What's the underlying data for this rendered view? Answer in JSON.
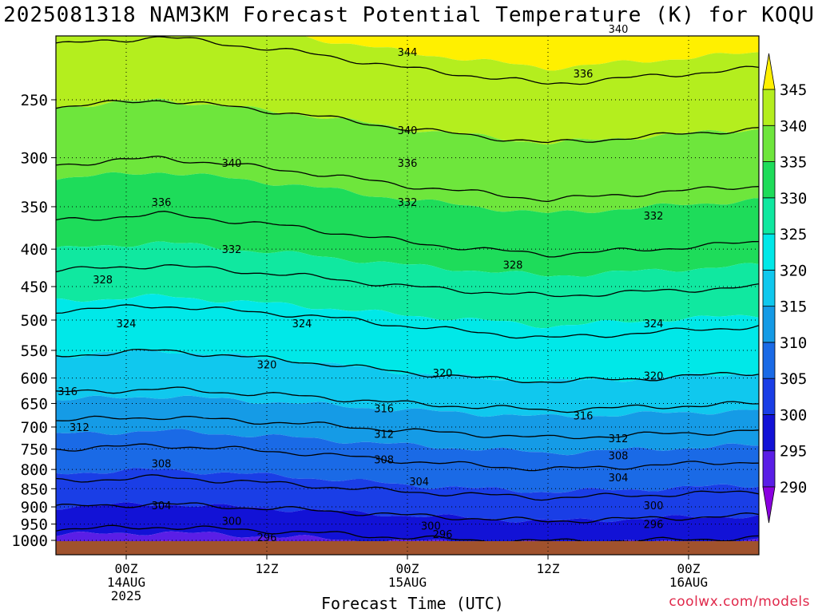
{
  "chart_data": {
    "type": "heatmap",
    "title": "2025081318 NAM3KM Forecast Potential Temperature (K) for KOQU",
    "xlabel": "Forecast Time (UTC)",
    "ylabel": "",
    "y_scale": "log-pressure",
    "y_ticks": [
      250,
      300,
      350,
      400,
      450,
      500,
      550,
      600,
      650,
      700,
      750,
      800,
      850,
      900,
      950,
      1000
    ],
    "x_ticks": [
      {
        "time": "2025-08-14T00Z",
        "label": [
          "00Z",
          "14AUG",
          "2025"
        ]
      },
      {
        "time": "2025-08-14T12Z",
        "label": [
          "12Z"
        ]
      },
      {
        "time": "2025-08-15T00Z",
        "label": [
          "00Z",
          "15AUG"
        ]
      },
      {
        "time": "2025-08-15T12Z",
        "label": [
          "12Z"
        ]
      },
      {
        "time": "2025-08-16T00Z",
        "label": [
          "00Z",
          "16AUG"
        ]
      }
    ],
    "x_range": [
      "2025-08-13T18Z",
      "2025-08-16T06Z"
    ],
    "y_range": [
      1010,
      200
    ],
    "colorbar": {
      "ticks": [
        290,
        295,
        300,
        305,
        310,
        315,
        320,
        325,
        330,
        335,
        340,
        345
      ],
      "levels": [
        {
          "min": 285,
          "max": 290,
          "color": "#8a00e0"
        },
        {
          "min": 290,
          "max": 295,
          "color": "#5a1ee6"
        },
        {
          "min": 295,
          "max": 300,
          "color": "#1212d6"
        },
        {
          "min": 300,
          "max": 305,
          "color": "#1a3ee6"
        },
        {
          "min": 305,
          "max": 310,
          "color": "#1a6ae6"
        },
        {
          "min": 310,
          "max": 315,
          "color": "#159be6"
        },
        {
          "min": 315,
          "max": 320,
          "color": "#10c8ee"
        },
        {
          "min": 320,
          "max": 325,
          "color": "#00e8e8"
        },
        {
          "min": 325,
          "max": 330,
          "color": "#10e8a0"
        },
        {
          "min": 330,
          "max": 335,
          "color": "#1edc5a"
        },
        {
          "min": 335,
          "max": 340,
          "color": "#6ee63c"
        },
        {
          "min": 340,
          "max": 345,
          "color": "#b4ee1e"
        },
        {
          "min": 345,
          "max": 350,
          "color": "#fff000"
        }
      ]
    },
    "profile": [
      {
        "p": 1010,
        "theta": 293
      },
      {
        "p": 1000,
        "theta": 295
      },
      {
        "p": 950,
        "theta": 298
      },
      {
        "p": 900,
        "theta": 301
      },
      {
        "p": 850,
        "theta": 304
      },
      {
        "p": 800,
        "theta": 306.5
      },
      {
        "p": 750,
        "theta": 309
      },
      {
        "p": 700,
        "theta": 312
      },
      {
        "p": 650,
        "theta": 315.5
      },
      {
        "p": 600,
        "theta": 319
      },
      {
        "p": 550,
        "theta": 321.5
      },
      {
        "p": 500,
        "theta": 324
      },
      {
        "p": 450,
        "theta": 327.5
      },
      {
        "p": 400,
        "theta": 331
      },
      {
        "p": 350,
        "theta": 334
      },
      {
        "p": 300,
        "theta": 337.5
      },
      {
        "p": 250,
        "theta": 341.5
      },
      {
        "p": 200,
        "theta": 346
      }
    ],
    "time_anomaly": [
      {
        "t": 0.0,
        "d": -1.0
      },
      {
        "t": 0.15,
        "d": -1.5
      },
      {
        "t": 0.35,
        "d": -0.5
      },
      {
        "t": 0.5,
        "d": 0.5
      },
      {
        "t": 0.7,
        "d": 1.5
      },
      {
        "t": 0.85,
        "d": 1.0
      },
      {
        "t": 1.0,
        "d": 0.5
      }
    ],
    "contour_levels": [
      296,
      300,
      304,
      308,
      312,
      316,
      320,
      324,
      328,
      332,
      336,
      340,
      344
    ],
    "contour_labels": [
      {
        "value": "344",
        "time": "2025-08-15T00Z",
        "p": 215
      },
      {
        "value": "340",
        "time": "2025-08-15T18Z",
        "p": 200
      },
      {
        "value": "336",
        "time": "2025-08-15T15Z",
        "p": 230
      },
      {
        "value": "340",
        "time": "2025-08-15T00Z",
        "p": 275
      },
      {
        "value": "340",
        "time": "2025-08-14T09Z",
        "p": 305
      },
      {
        "value": "336",
        "time": "2025-08-15T00Z",
        "p": 305
      },
      {
        "value": "336",
        "time": "2025-08-14T03Z",
        "p": 345
      },
      {
        "value": "332",
        "time": "2025-08-15T00Z",
        "p": 345
      },
      {
        "value": "332",
        "time": "2025-08-15T21Z",
        "p": 360
      },
      {
        "value": "332",
        "time": "2025-08-14T09Z",
        "p": 400
      },
      {
        "value": "328",
        "time": "2025-08-13T22Z",
        "p": 440
      },
      {
        "value": "328",
        "time": "2025-08-15T09Z",
        "p": 420
      },
      {
        "value": "324",
        "time": "2025-08-14T00Z",
        "p": 505
      },
      {
        "value": "324",
        "time": "2025-08-14T15Z",
        "p": 505
      },
      {
        "value": "324",
        "time": "2025-08-15T21Z",
        "p": 505
      },
      {
        "value": "320",
        "time": "2025-08-14T12Z",
        "p": 575
      },
      {
        "value": "320",
        "time": "2025-08-15T03Z",
        "p": 590
      },
      {
        "value": "320",
        "time": "2025-08-15T21Z",
        "p": 595
      },
      {
        "value": "316",
        "time": "2025-08-13T19Z",
        "p": 625
      },
      {
        "value": "316",
        "time": "2025-08-14T22Z",
        "p": 660
      },
      {
        "value": "316",
        "time": "2025-08-15T15Z",
        "p": 675
      },
      {
        "value": "312",
        "time": "2025-08-13T20Z",
        "p": 700
      },
      {
        "value": "312",
        "time": "2025-08-14T22Z",
        "p": 715
      },
      {
        "value": "312",
        "time": "2025-08-15T18Z",
        "p": 725
      },
      {
        "value": "308",
        "time": "2025-08-14T03Z",
        "p": 785
      },
      {
        "value": "308",
        "time": "2025-08-14T22Z",
        "p": 775
      },
      {
        "value": "308",
        "time": "2025-08-15T18Z",
        "p": 765
      },
      {
        "value": "304",
        "time": "2025-08-14T03Z",
        "p": 895
      },
      {
        "value": "304",
        "time": "2025-08-15T01Z",
        "p": 830
      },
      {
        "value": "304",
        "time": "2025-08-15T18Z",
        "p": 820
      },
      {
        "value": "300",
        "time": "2025-08-14T09Z",
        "p": 940
      },
      {
        "value": "300",
        "time": "2025-08-15T21Z",
        "p": 895
      },
      {
        "value": "300",
        "time": "2025-08-15T02Z",
        "p": 955
      },
      {
        "value": "296",
        "time": "2025-08-14T12Z",
        "p": 990
      },
      {
        "value": "296",
        "time": "2025-08-15T03Z",
        "p": 980
      },
      {
        "value": "296",
        "time": "2025-08-15T21Z",
        "p": 950
      }
    ]
  },
  "credit": "coolwx.com/models"
}
